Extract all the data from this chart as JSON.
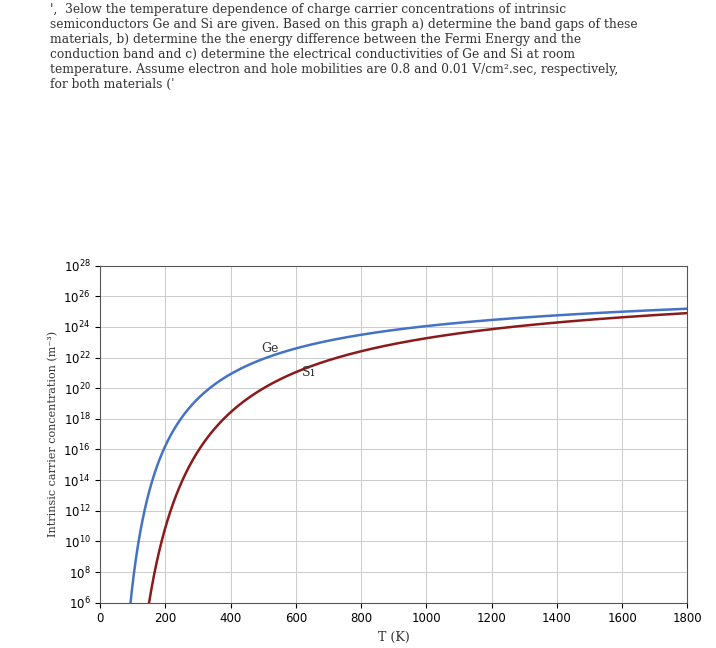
{
  "title_text": "',  3elow the temperature dependence of charge carrier concentrations of intrinsic\nsemiconductors Ge and Si are given. Based on this graph a) determine the band gaps of these\nmaterials, b) determine the the energy difference between the Fermi Energy and the\nconduction band and c) determine the electrical conductivities of Ge and Si at room\ntemperature. Assume electron and hole mobilities are 0.8 and 0.01 V/cm².sec, respectively,\nfor both materials (ˈ",
  "xlabel": "T (K)",
  "ylabel": "Intrinsic carrier concentration (m⁻³)",
  "xlim": [
    0,
    1800
  ],
  "ymin_exp": 6,
  "ymax_exp": 28,
  "yticks_exp": [
    6,
    8,
    10,
    12,
    14,
    16,
    18,
    20,
    22,
    24,
    26,
    28
  ],
  "xticks": [
    0,
    200,
    400,
    600,
    800,
    1000,
    1200,
    1400,
    1600,
    1800
  ],
  "ge_color": "#4472C4",
  "si_color": "#8B1A1A",
  "ge_label": "Ge",
  "si_label": "Si",
  "ge_Eg_eV": 0.67,
  "si_Eg_eV": 1.12,
  "ge_prefactor": 1.76e+21,
  "si_prefactor": 3.87e+21,
  "text_color": "#333333",
  "grid_color": "#CCCCCC",
  "background_color": "#FFFFFF",
  "label_fontsize": 9,
  "tick_fontsize": 8.5,
  "ylabel_fontsize": 8,
  "ge_label_T": 470,
  "si_label_T": 600
}
